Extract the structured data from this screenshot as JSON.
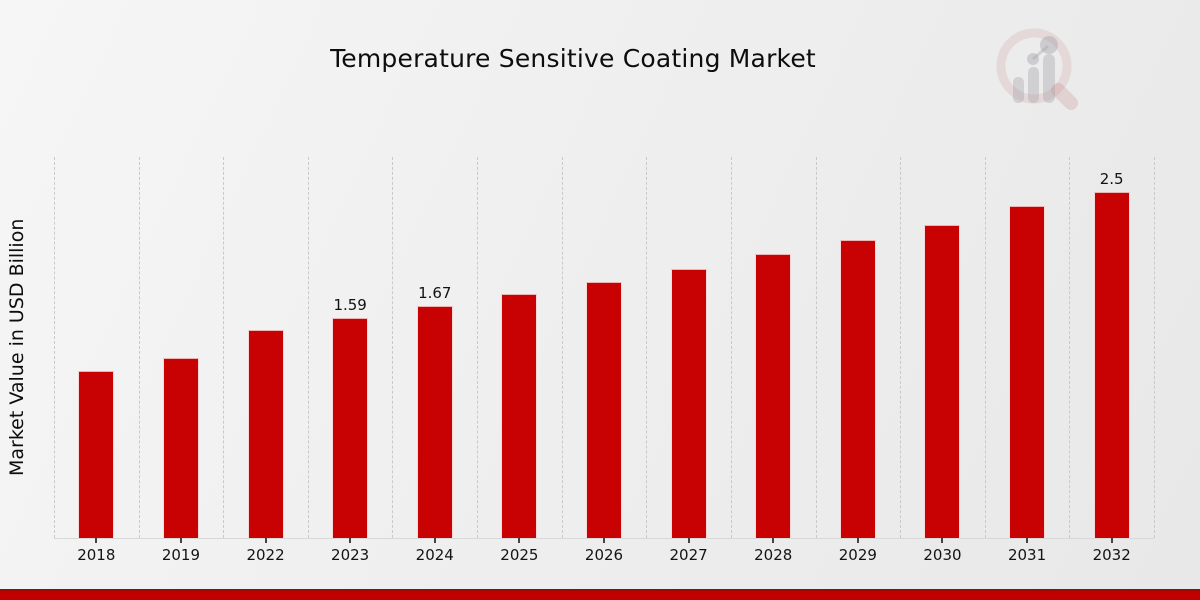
{
  "colors": {
    "bar": "#c80202",
    "bar_edge": "#ffffff",
    "stripe": "#c00000",
    "stripe_top": "#9c0909",
    "grid": "#c9c9c9",
    "tick": "#444444",
    "text": "#111111",
    "bg_light": "#f6f6f6",
    "bg_dark": "#e8e8e8",
    "logo_ring": "#cf8f8f",
    "logo_gray": "#9a9aa4"
  },
  "logo": {
    "icon": "magnifier-bar-chart-logo"
  },
  "chart_data": {
    "type": "bar",
    "title": "Temperature Sensitive Coating Market",
    "xlabel": "",
    "ylabel": "Market Value in USD Billion",
    "categories": [
      "2018",
      "2019",
      "2022",
      "2023",
      "2024",
      "2025",
      "2026",
      "2027",
      "2028",
      "2029",
      "2030",
      "2031",
      "2032"
    ],
    "values": [
      1.2,
      1.3,
      1.5,
      1.59,
      1.67,
      1.76,
      1.85,
      1.94,
      2.05,
      2.15,
      2.26,
      2.4,
      2.5
    ],
    "annotations": [
      {
        "category": "2023",
        "text": "1.59"
      },
      {
        "category": "2024",
        "text": "1.67"
      },
      {
        "category": "2032",
        "text": "2.5"
      }
    ],
    "ylim": [
      0,
      2.76
    ],
    "y_tick_labels": "none",
    "grid": "vertical-dashed",
    "legend": "none",
    "bar_color_name": "red"
  }
}
